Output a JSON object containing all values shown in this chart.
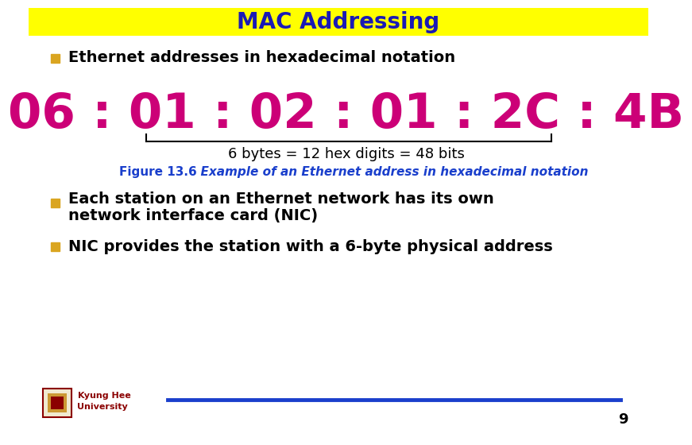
{
  "title": "MAC Addressing",
  "title_bg": "#FFFF00",
  "title_color": "#1A1AB5",
  "title_fontsize": 20,
  "bullet1": "Ethernet addresses in hexadecimal notation",
  "hex_address": "06 : 01 : 02 : 01 : 2C : 4B",
  "hex_color": "#CC0077",
  "hex_fontsize": 44,
  "bytes_label": "6 bytes = 12 hex digits = 48 bits",
  "bytes_fontsize": 13,
  "figure_label_bold": "Figure 13.6",
  "figure_label_italic": "  Example of an Ethernet address in hexadecimal notation",
  "figure_color": "#1A3FCC",
  "figure_fontsize": 11,
  "bullet2_line1": "Each station on an Ethernet network has its own",
  "bullet2_line2": "network interface card (NIC)",
  "bullet3": "NIC provides the station with a 6-byte physical address",
  "bullet_color": "#000000",
  "bullet_fontsize": 14,
  "footer_name1": "Kyung Hee",
  "footer_name2": "University",
  "footer_color": "#8B0000",
  "footer_line_color": "#1A3FCC",
  "page_number": "9",
  "background_color": "#FFFFFF",
  "bullet_sq_color": "#DAA520"
}
